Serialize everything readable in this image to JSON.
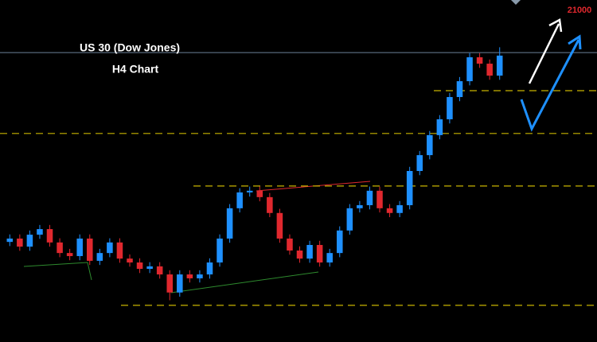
{
  "chart_data": {
    "type": "candlestick",
    "title": "US 30 (Dow Jones)",
    "subtitle": "H4 Chart",
    "annotation": "21000",
    "ylim": [
      19600,
      20830
    ],
    "up_color": "#1e90ff",
    "down_color": "#e0282e",
    "open": [
      19960,
      19972,
      19943,
      19986,
      20006,
      19958,
      19920,
      19909,
      19972,
      19892,
      19920,
      19958,
      19900,
      19886,
      19863,
      19872,
      19843,
      19778,
      19843,
      19829,
      19843,
      19886,
      19972,
      20081,
      20138,
      20144,
      20121,
      20064,
      19972,
      19929,
      19900,
      19949,
      19886,
      19920,
      20001,
      20081,
      20092,
      20144,
      20081,
      20064,
      20092,
      20215,
      20272,
      20344,
      20401,
      20481,
      20538,
      20624,
      20601,
      20558
    ],
    "high": [
      19987,
      19987,
      20001,
      20021,
      20021,
      19973,
      19935,
      19987,
      19987,
      19935,
      19973,
      19973,
      19915,
      19901,
      19887,
      19887,
      19858,
      19858,
      19858,
      19858,
      19901,
      19987,
      20096,
      20153,
      20159,
      20159,
      20136,
      20079,
      19987,
      19944,
      19964,
      19964,
      19935,
      20016,
      20096,
      20107,
      20159,
      20159,
      20096,
      20107,
      20230,
      20287,
      20359,
      20416,
      20496,
      20553,
      20639,
      20639,
      20616,
      20660
    ],
    "low": [
      19945,
      19928,
      19928,
      19971,
      19943,
      19905,
      19894,
      19894,
      19877,
      19877,
      19905,
      19885,
      19871,
      19848,
      19848,
      19828,
      19750,
      19763,
      19814,
      19814,
      19828,
      19871,
      19957,
      20066,
      20123,
      20106,
      20049,
      19957,
      19914,
      19885,
      19885,
      19871,
      19871,
      19905,
      19986,
      20066,
      20077,
      20066,
      20049,
      20049,
      20077,
      20200,
      20257,
      20329,
      20386,
      20466,
      20523,
      20586,
      20543,
      20543
    ],
    "close": [
      19972,
      19943,
      19986,
      20006,
      19958,
      19920,
      19909,
      19972,
      19892,
      19920,
      19958,
      19900,
      19886,
      19863,
      19872,
      19843,
      19778,
      19843,
      19829,
      19843,
      19886,
      19972,
      20081,
      20138,
      20144,
      20121,
      20064,
      19972,
      19929,
      19900,
      19949,
      19886,
      19920,
      20001,
      20081,
      20092,
      20144,
      20081,
      20064,
      20092,
      20215,
      20272,
      20344,
      20401,
      20481,
      20538,
      20624,
      20601,
      20558,
      20630
    ],
    "levels": [
      20504,
      20350,
      20161,
      19732
    ],
    "level_color": "#c8b400",
    "price_line": 20641,
    "price_line_color": "#6b7f99"
  }
}
